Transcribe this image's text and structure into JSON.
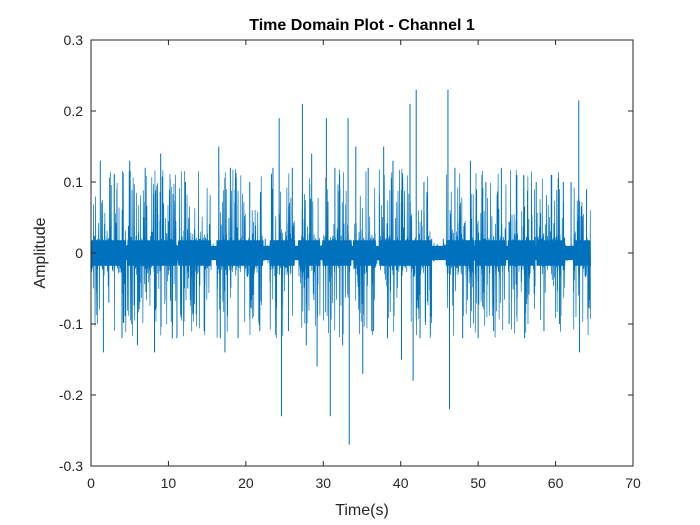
{
  "chart_data": {
    "type": "line",
    "title": "Time Domain Plot - Channel 1",
    "xlabel": "Time(s)",
    "ylabel": "Amplitude",
    "xlim": [
      0,
      70
    ],
    "ylim": [
      -0.3,
      0.3
    ],
    "x_ticks": [
      0,
      10,
      20,
      30,
      40,
      50,
      60,
      70
    ],
    "x_tick_labels": [
      "0",
      "10",
      "20",
      "30",
      "40",
      "50",
      "60",
      "70"
    ],
    "y_ticks": [
      -0.3,
      -0.2,
      -0.1,
      0,
      0.1,
      0.2,
      0.3
    ],
    "y_tick_labels": [
      "-0.3",
      "-0.2",
      "-0.1",
      "0",
      "0.1",
      "0.2",
      "0.3"
    ],
    "grid": false,
    "line_color": "#0072BD",
    "signal_duration": 64.5,
    "series": [
      {
        "values": [
          [
            0.0,
            0.0
          ],
          [
            1.2,
            0.13
          ],
          [
            1.6,
            -0.14
          ],
          [
            2.3,
            -0.07
          ],
          [
            3.0,
            0.11
          ],
          [
            4.0,
            -0.12
          ],
          [
            5.0,
            0.13
          ],
          [
            6.0,
            -0.13
          ],
          [
            7.0,
            0.12
          ],
          [
            8.2,
            -0.14
          ],
          [
            9.0,
            0.14
          ],
          [
            10.5,
            -0.12
          ],
          [
            11.1,
            -0.12
          ],
          [
            12.2,
            0.1
          ],
          [
            12.5,
            -0.05
          ],
          [
            14.0,
            0.02
          ],
          [
            16.5,
            0.15
          ],
          [
            16.7,
            -0.12
          ],
          [
            17.3,
            -0.14
          ],
          [
            18.0,
            0.12
          ],
          [
            19.0,
            -0.12
          ],
          [
            20.5,
            0.1
          ],
          [
            21.8,
            -0.11
          ],
          [
            22.5,
            0.02
          ],
          [
            23.5,
            0.12
          ],
          [
            24.3,
            0.19
          ],
          [
            24.6,
            -0.23
          ],
          [
            25.5,
            -0.11
          ],
          [
            26.0,
            0.12
          ],
          [
            27.3,
            0.21
          ],
          [
            27.8,
            -0.13
          ],
          [
            28.5,
            0.14
          ],
          [
            29.2,
            -0.16
          ],
          [
            30.4,
            0.19
          ],
          [
            30.9,
            -0.23
          ],
          [
            31.5,
            0.12
          ],
          [
            32.5,
            -0.13
          ],
          [
            33.2,
            0.19
          ],
          [
            33.35,
            -0.27
          ],
          [
            34.2,
            0.15
          ],
          [
            35.1,
            -0.17
          ],
          [
            35.8,
            0.12
          ],
          [
            36.5,
            -0.11
          ],
          [
            37.8,
            0.15
          ],
          [
            38.3,
            -0.12
          ],
          [
            39.0,
            0.13
          ],
          [
            40.1,
            -0.15
          ],
          [
            41.2,
            0.21
          ],
          [
            41.6,
            -0.18
          ],
          [
            42.0,
            0.23
          ],
          [
            42.5,
            -0.12
          ],
          [
            43.0,
            0.1
          ],
          [
            44.0,
            0.02
          ],
          [
            45.5,
            0.02
          ],
          [
            46.1,
            0.23
          ],
          [
            46.3,
            -0.22
          ],
          [
            47.0,
            0.12
          ],
          [
            48.0,
            -0.12
          ],
          [
            49.0,
            0.13
          ],
          [
            50.0,
            -0.12
          ],
          [
            51.0,
            0.1
          ],
          [
            52.0,
            -0.11
          ],
          [
            53.0,
            0.12
          ],
          [
            54.0,
            -0.1
          ],
          [
            55.0,
            0.11
          ],
          [
            56.0,
            -0.12
          ],
          [
            57.5,
            0.1
          ],
          [
            58.5,
            -0.11
          ],
          [
            59.5,
            0.11
          ],
          [
            60.5,
            -0.1
          ],
          [
            61.0,
            0.1
          ],
          [
            62.0,
            0.1
          ],
          [
            63.0,
            0.215
          ],
          [
            63.1,
            -0.14
          ],
          [
            64.0,
            0.09
          ],
          [
            64.5,
            0.0
          ]
        ]
      }
    ]
  }
}
